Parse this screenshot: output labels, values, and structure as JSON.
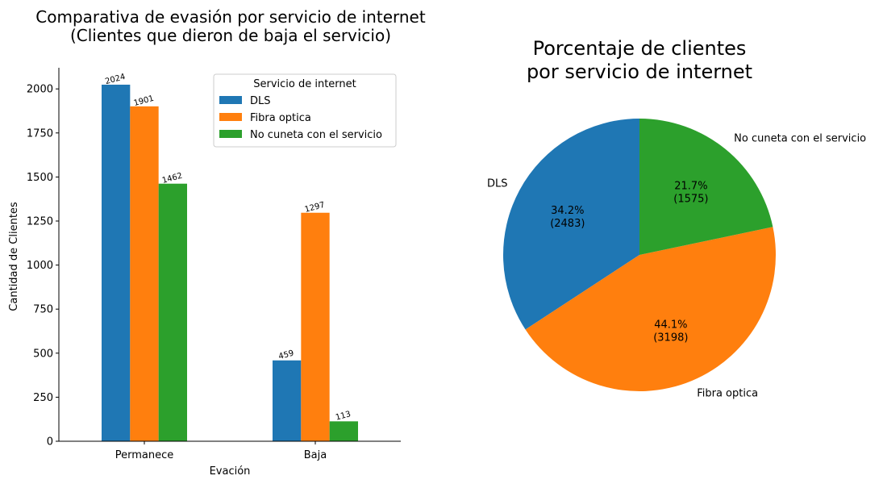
{
  "chart_data": [
    {
      "type": "bar",
      "title": "Comparativa de evasión por servicio de internet",
      "subtitle": "(Clientes que dieron de baja el servicio)",
      "xlabel": "Evación",
      "ylabel": "Cantidad de Clientes",
      "categories": [
        "Permanece",
        "Baja"
      ],
      "series": [
        {
          "name": "DLS",
          "values": [
            2024,
            459
          ],
          "color": "#1f77b4"
        },
        {
          "name": "Fibra optica",
          "values": [
            1901,
            1297
          ],
          "color": "#ff7f0e"
        },
        {
          "name": "No cuneta con el servicio",
          "values": [
            1462,
            113
          ],
          "color": "#2ca02c"
        }
      ],
      "ylim": [
        0,
        2120
      ],
      "yticks": [
        0,
        250,
        500,
        750,
        1000,
        1250,
        1500,
        1750,
        2000
      ],
      "grid": false,
      "legend": {
        "title": "Servicio de internet",
        "placement": "top-right"
      }
    },
    {
      "type": "pie",
      "title_lines": [
        "Porcentaje de clientes",
        "por servicio de internet"
      ],
      "slices": [
        {
          "label": "DLS",
          "value": 2483,
          "percent": "34.2%",
          "count_label": "(2483)",
          "color": "#1f77b4"
        },
        {
          "label": "Fibra optica",
          "value": 3198,
          "percent": "44.1%",
          "count_label": "(3198)",
          "color": "#ff7f0e"
        },
        {
          "label": "No cuneta con el servicio",
          "value": 1575,
          "percent": "21.7%",
          "count_label": "(1575)",
          "color": "#2ca02c"
        }
      ]
    }
  ]
}
